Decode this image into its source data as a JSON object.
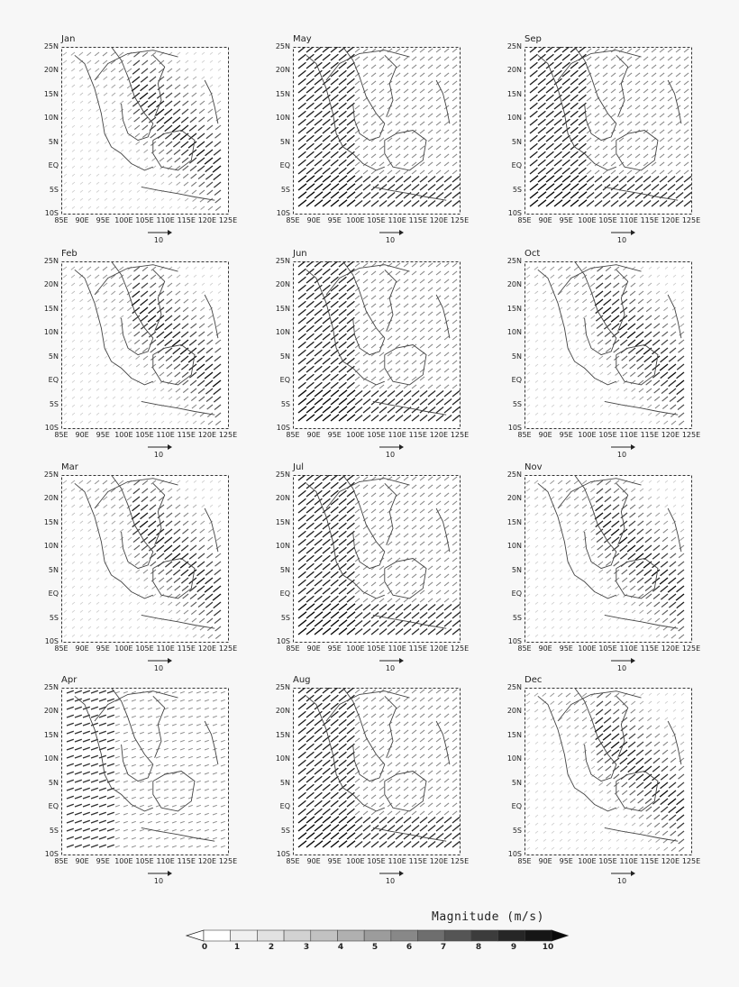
{
  "panels": [
    {
      "month": "Jan"
    },
    {
      "month": "May"
    },
    {
      "month": "Sep"
    },
    {
      "month": "Feb"
    },
    {
      "month": "Jun"
    },
    {
      "month": "Oct"
    },
    {
      "month": "Mar"
    },
    {
      "month": "Jul"
    },
    {
      "month": "Nov"
    },
    {
      "month": "Apr"
    },
    {
      "month": "Aug"
    },
    {
      "month": "Dec"
    }
  ],
  "lat_labels": [
    "25N",
    "20N",
    "15N",
    "10N",
    "5N",
    "EQ",
    "5S",
    "10S"
  ],
  "lon_labels": [
    "85E",
    "90E",
    "95E",
    "100E",
    "105E",
    "110E",
    "115E",
    "120E",
    "125E"
  ],
  "reference_vector": "10",
  "legend": {
    "title": "Magnitude (m/s)",
    "ticks": [
      "0",
      "1",
      "2",
      "3",
      "4",
      "5",
      "6",
      "7",
      "8",
      "9",
      "10"
    ],
    "colors": [
      "#ffffff",
      "#f0f0f0",
      "#e2e2e2",
      "#d2d2d2",
      "#c2c2c2",
      "#b0b0b0",
      "#9c9c9c",
      "#888888",
      "#6e6e6e",
      "#555555",
      "#3c3c3c",
      "#262626",
      "#161616",
      "#0a0a0a"
    ]
  },
  "wind_regime": {
    "Jan": "NE",
    "Feb": "NE",
    "Mar": "NE",
    "Apr": "W",
    "May": "SW",
    "Jun": "SW",
    "Jul": "SW",
    "Aug": "SW",
    "Sep": "SW",
    "Oct": "NE",
    "Nov": "NE",
    "Dec": "NE"
  }
}
